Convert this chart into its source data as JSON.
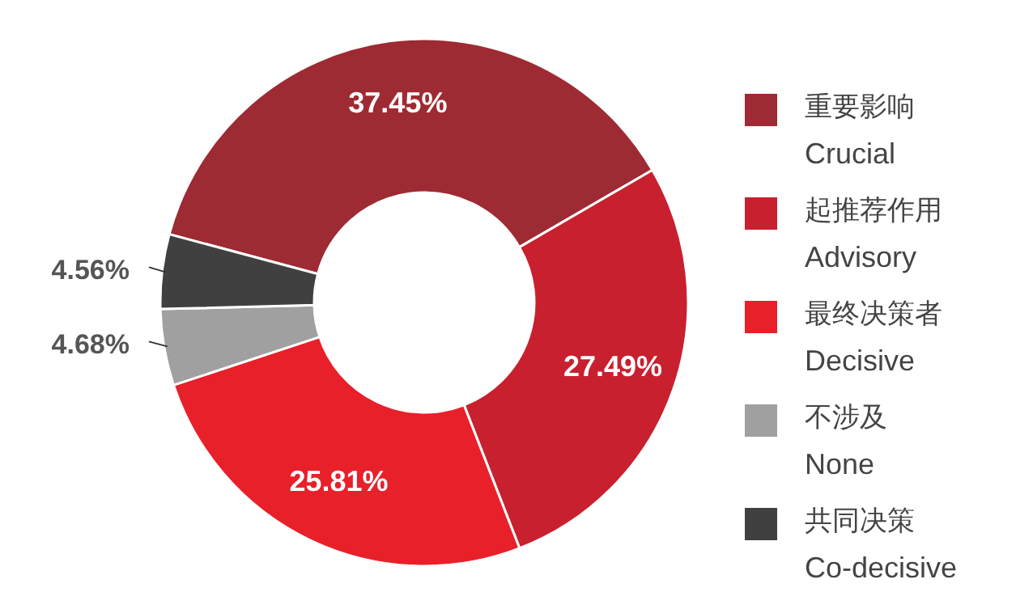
{
  "chart_data": {
    "type": "donut",
    "categories": [
      "重要影响\nCrucial",
      "起推荐作用\nAdvisory",
      "最终决策者\nDecisive",
      "不涉及\nNone",
      "共同决策\nCo-decisive"
    ],
    "values": [
      37.45,
      27.49,
      25.81,
      4.68,
      4.56
    ],
    "colors": [
      "#9e2a33",
      "#c8202e",
      "#e8202a",
      "#a0a0a0",
      "#404040"
    ],
    "value_labels": [
      "37.45%",
      "27.49%",
      "25.81%",
      "4.68%",
      "4.56%"
    ],
    "legend": "right"
  }
}
